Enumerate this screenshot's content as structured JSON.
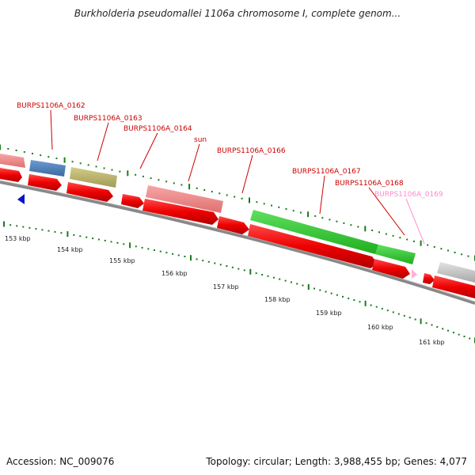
{
  "title": "Burkholderia pseudomallei 1106a chromosome I, complete genom...",
  "footer": {
    "accession": "Accession: NC_009076",
    "summary": "Topology: circular; Length: 3,988,455 bp; Genes: 4,077"
  },
  "scale_labels": [
    "153 kbp",
    "154 kbp",
    "155 kbp",
    "156 kbp",
    "157 kbp",
    "158 kbp",
    "159 kbp",
    "160 kbp",
    "161 kbp"
  ],
  "genes": [
    {
      "label": "BURPS1106A_0162",
      "color": "#cc0000"
    },
    {
      "label": "BURPS1106A_0163",
      "color": "#cc0000"
    },
    {
      "label": "BURPS1106A_0164",
      "color": "#cc0000"
    },
    {
      "label": "sun",
      "color": "#cc0000"
    },
    {
      "label": "BURPS1106A_0166",
      "color": "#cc0000"
    },
    {
      "label": "BURPS1106A_0167",
      "color": "#cc0000"
    },
    {
      "label": "BURPS1106A_0168",
      "color": "#cc0000"
    },
    {
      "label": "BURPS1106A_0169",
      "color": "#ff88cc"
    }
  ],
  "colors": {
    "cds": "#ee0000",
    "rrna_pink": "#f08080",
    "blue": "#4f7fb8",
    "olive": "#bdb76b",
    "green": "#2ecc2e",
    "gray": "#c8c8c8",
    "backbone": "#888888",
    "tick": "#1a7a1a"
  }
}
